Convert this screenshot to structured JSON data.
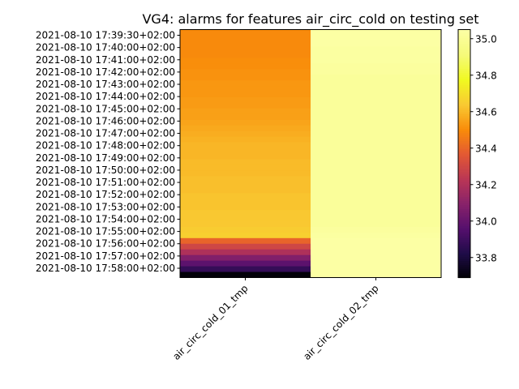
{
  "chart_data": {
    "type": "heatmap",
    "title": "VG4: alarms for features air_circ_cold on testing set",
    "x_categories": [
      "air_circ_cold_01_tmp",
      "air_circ_cold_02_tmp"
    ],
    "y_tick_labels": [
      "2021-08-10 17:39:30+02:00",
      "2021-08-10 17:40:00+02:00",
      "2021-08-10 17:41:00+02:00",
      "2021-08-10 17:42:00+02:00",
      "2021-08-10 17:43:00+02:00",
      "2021-08-10 17:44:00+02:00",
      "2021-08-10 17:45:00+02:00",
      "2021-08-10 17:46:00+02:00",
      "2021-08-10 17:47:00+02:00",
      "2021-08-10 17:48:00+02:00",
      "2021-08-10 17:49:00+02:00",
      "2021-08-10 17:50:00+02:00",
      "2021-08-10 17:51:00+02:00",
      "2021-08-10 17:52:00+02:00",
      "2021-08-10 17:53:00+02:00",
      "2021-08-10 17:54:00+02:00",
      "2021-08-10 17:55:00+02:00",
      "2021-08-10 17:56:00+02:00",
      "2021-08-10 17:57:00+02:00",
      "2021-08-10 17:58:00+02:00"
    ],
    "series": [
      {
        "values": [
          34.5,
          34.5,
          34.5,
          34.5,
          34.5,
          34.51,
          34.51,
          34.52,
          34.52,
          34.53,
          34.53,
          34.53,
          34.54,
          34.54,
          34.55,
          34.55,
          34.56,
          34.57,
          34.58,
          34.59,
          34.6,
          34.6,
          34.6,
          34.61,
          34.61,
          34.61,
          34.62,
          34.62,
          34.62,
          34.63,
          34.63,
          34.63,
          34.64,
          34.64,
          34.64,
          34.65,
          34.66,
          34.4,
          34.3,
          34.2,
          34.08,
          33.98,
          33.88,
          33.7
        ]
      },
      {
        "values": [
          35.05,
          35.05,
          35.05,
          35.04,
          35.04,
          35.04,
          35.03,
          35.03,
          35.02,
          35.02,
          35.02,
          35.02,
          35.02,
          35.02,
          35.02,
          35.02,
          35.02,
          35.02,
          35.02,
          35.02,
          35.02,
          35.02,
          35.02,
          35.02,
          35.02,
          35.02,
          35.02,
          35.02,
          35.02,
          35.02,
          35.02,
          35.02,
          35.02,
          35.02,
          35.02,
          35.03,
          35.04,
          35.05,
          35.05,
          35.05,
          35.05,
          35.05,
          35.05,
          35.05
        ]
      }
    ],
    "colormap": "inferno",
    "colorbar": {
      "range": [
        33.69,
        35.05
      ],
      "ticks": [
        33.8,
        34.0,
        34.2,
        34.4,
        34.6,
        34.8,
        35.0
      ],
      "tick_labels": [
        "33.8",
        "34.0",
        "34.2",
        "34.4",
        "34.6",
        "34.8",
        "35.0"
      ]
    },
    "grid": false,
    "legend": "colorbar-right"
  }
}
